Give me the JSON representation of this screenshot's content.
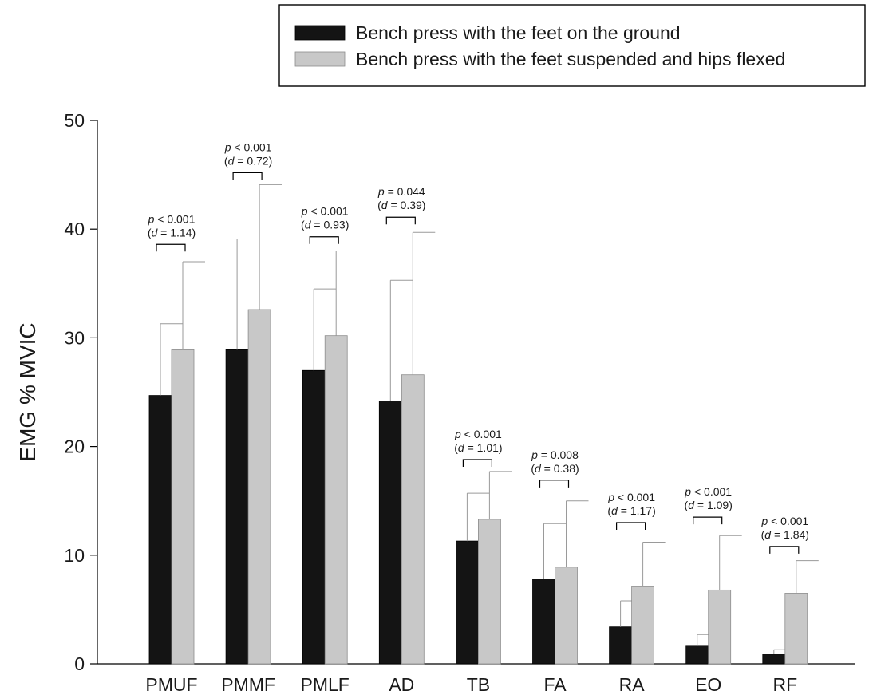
{
  "chart_data": {
    "type": "bar",
    "ylabel": "EMG % MVIC",
    "xlabel": "",
    "ylim": [
      0,
      50
    ],
    "yticks": [
      0,
      10,
      20,
      30,
      40,
      50
    ],
    "grid": false,
    "legend_position": "top-right",
    "categories": [
      "PMUF",
      "PMMF",
      "PMLF",
      "AD",
      "TB",
      "FA",
      "RA",
      "EO",
      "RF"
    ],
    "series": [
      {
        "name": "Bench press with the feet on the ground",
        "color": "#141414",
        "values": [
          24.7,
          28.9,
          27.0,
          24.2,
          11.3,
          7.8,
          3.4,
          1.7,
          0.9
        ],
        "error": [
          6.6,
          10.2,
          7.5,
          11.1,
          4.4,
          5.1,
          2.4,
          1.0,
          0.4
        ]
      },
      {
        "name": "Bench press with the feet suspended and hips flexed",
        "color": "#c8c8c8",
        "values": [
          28.9,
          32.6,
          30.2,
          26.6,
          13.3,
          8.9,
          7.1,
          6.8,
          6.5
        ],
        "error": [
          8.1,
          11.5,
          7.8,
          13.1,
          4.4,
          6.1,
          4.1,
          5.0,
          3.0
        ]
      }
    ],
    "annotations": [
      {
        "category": "PMUF",
        "p_label": "p",
        "p_text": " < 0.001",
        "d_open": "(",
        "d_label": "d",
        "d_text": "  = 1.14)",
        "bracket_y": 38.6
      },
      {
        "category": "PMMF",
        "p_label": "p",
        "p_text": " < 0.001",
        "d_open": "(",
        "d_label": "d",
        "d_text": " = 0.72)",
        "bracket_y": 45.2
      },
      {
        "category": "PMLF",
        "p_label": "p",
        "p_text": " < 0.001",
        "d_open": "(",
        "d_label": "d",
        "d_text": " = 0.93)",
        "bracket_y": 39.3
      },
      {
        "category": "AD",
        "p_label": "p",
        "p_text": " = 0.044",
        "d_open": "(",
        "d_label": "d",
        "d_text": " = 0.39)",
        "bracket_y": 41.1
      },
      {
        "category": "TB",
        "p_label": "p",
        "p_text": " < 0.001",
        "d_open": "(",
        "d_label": "d",
        "d_text": " = 1.01)",
        "bracket_y": 18.8
      },
      {
        "category": "FA",
        "p_label": "p",
        "p_text": " = 0.008",
        "d_open": "(",
        "d_label": "d",
        "d_text": " = 0.38)",
        "bracket_y": 16.9
      },
      {
        "category": "RA",
        "p_label": "p",
        "p_text": " < 0.001",
        "d_open": "(",
        "d_label": "d",
        "d_text": " = 1.17)",
        "bracket_y": 13.0
      },
      {
        "category": "EO",
        "p_label": "p",
        "p_text": " < 0.001",
        "d_open": "(",
        "d_label": "d",
        "d_text": " = 1.09)",
        "bracket_y": 13.5
      },
      {
        "category": "RF",
        "p_label": "p",
        "p_text": " < 0.001",
        "d_open": "(",
        "d_label": "d",
        "d_text": " = 1.84)",
        "bracket_y": 10.8
      }
    ]
  }
}
